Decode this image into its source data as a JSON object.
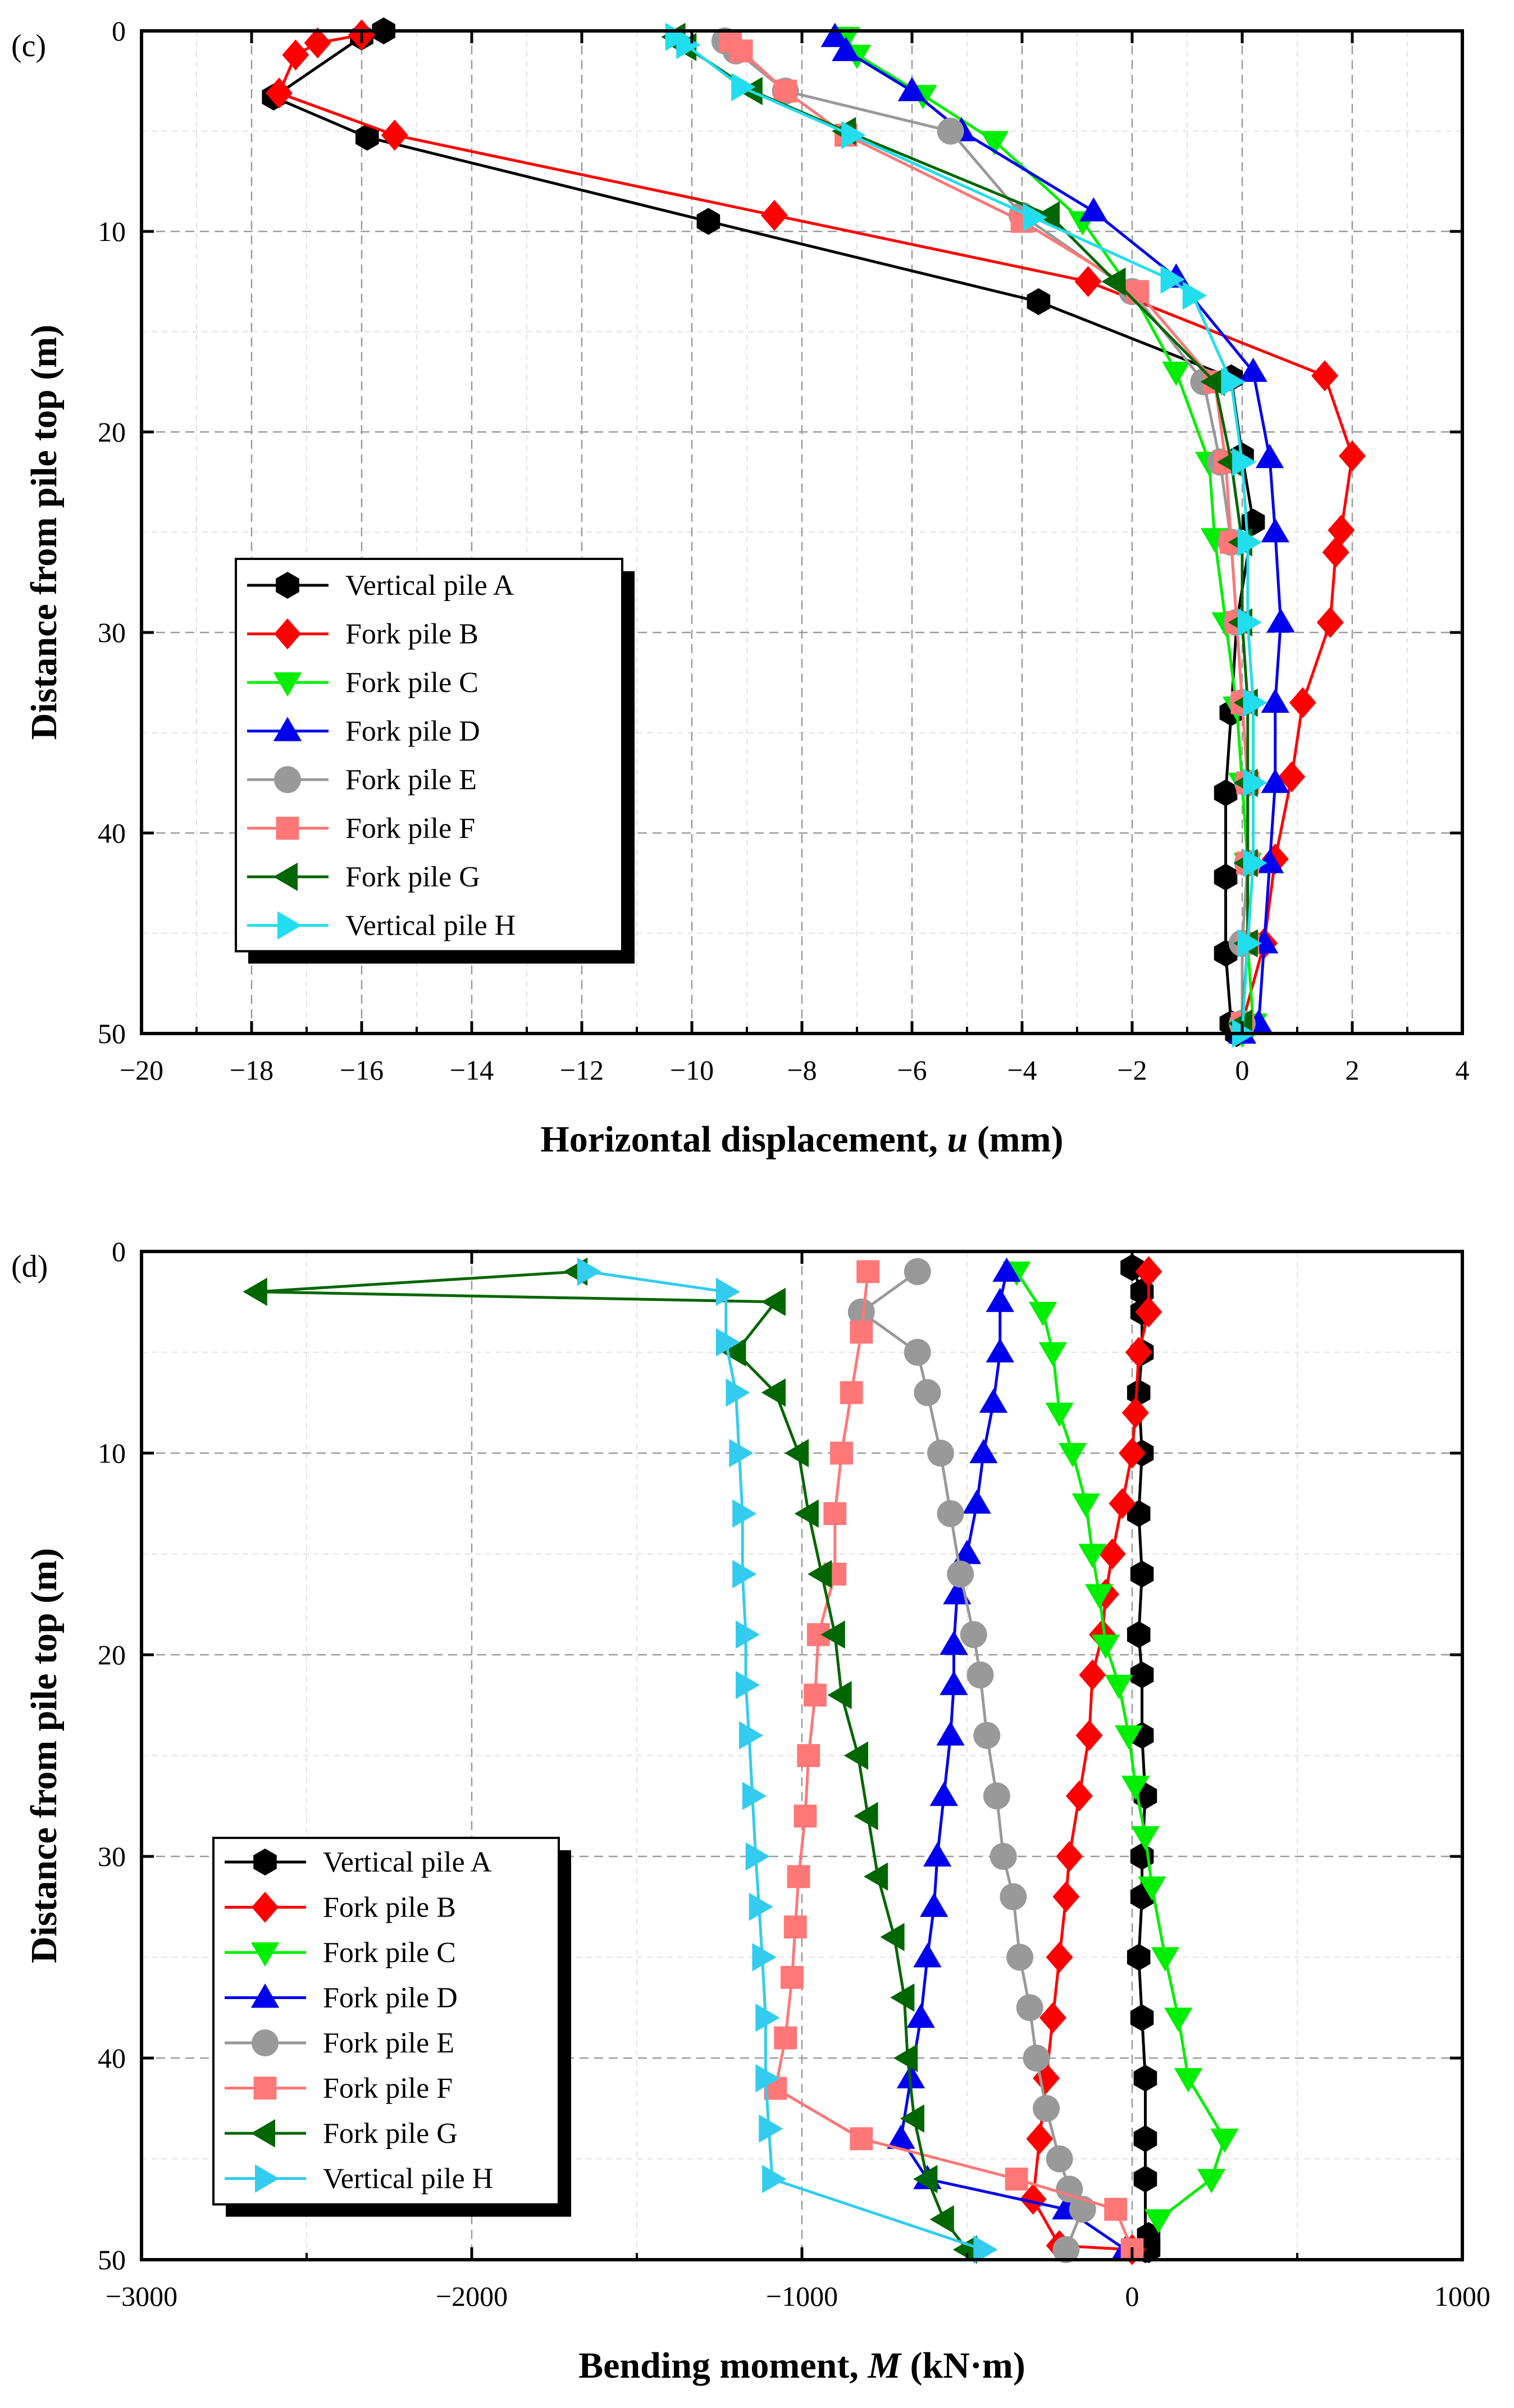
{
  "figure": {
    "panels": [
      "c",
      "d"
    ]
  },
  "chart_data": [
    {
      "type": "line",
      "panel_label": "(c)",
      "xlabel_main": "Horizontal displacement, ",
      "xlabel_var": "u",
      "xlabel_unit": " (mm)",
      "ylabel": "Distance from pile top (m)",
      "xlim": [
        -20,
        4
      ],
      "ylim": [
        50,
        0
      ],
      "y_inverted": true,
      "xticks": [
        -20,
        -18,
        -16,
        -14,
        -12,
        -10,
        -8,
        -6,
        -4,
        -2,
        0,
        2,
        4
      ],
      "xtick_labels": [
        "−20",
        "−18",
        "−16",
        "−14",
        "−12",
        "−10",
        "−8",
        "−6",
        "−4",
        "−2",
        "0",
        "2",
        "4"
      ],
      "yticks": [
        0,
        10,
        20,
        30,
        40,
        50
      ],
      "ytick_labels": [
        "0",
        "10",
        "20",
        "30",
        "40",
        "50"
      ],
      "grid": true,
      "legend_position": "middle-left",
      "series": [
        {
          "name": "Vertical pile A",
          "color": "#000000",
          "marker": "hexagon",
          "x": [
            -15.6,
            -16.0,
            -17.6,
            -15.9,
            -9.7,
            -3.7,
            -0.2,
            0.0,
            0.2,
            -0.1,
            -0.2,
            -0.3,
            -0.3,
            -0.3,
            -0.2,
            -0.1
          ],
          "y": [
            0,
            0.3,
            3.3,
            5.3,
            9.5,
            13.5,
            17.3,
            21.2,
            24.5,
            29.5,
            34,
            38,
            42.2,
            46,
            49.5,
            50
          ]
        },
        {
          "name": "Fork pile B",
          "color": "#ff0000",
          "marker": "diamond",
          "x": [
            -16.0,
            -16.8,
            -17.2,
            -17.5,
            -15.4,
            -8.5,
            -2.8,
            1.5,
            2.0,
            1.8,
            1.7,
            1.6,
            1.1,
            0.9,
            0.6,
            0.4,
            0.0
          ],
          "y": [
            0.2,
            0.6,
            1.2,
            3.1,
            5.2,
            9.2,
            12.5,
            17.2,
            21.2,
            24.9,
            26.0,
            29.5,
            33.5,
            37.2,
            41.3,
            45.5,
            49.5
          ]
        },
        {
          "name": "Fork pile C",
          "color": "#00ee00",
          "marker": "triangle-down",
          "x": [
            -7.2,
            -7.0,
            -5.8,
            -4.5,
            -2.9,
            -2.0,
            -1.2,
            -0.6,
            -0.5,
            -0.3,
            -0.1,
            0.0,
            0.1,
            0.1,
            0.2,
            0.0
          ],
          "y": [
            0.3,
            1.2,
            3.2,
            5.5,
            9.5,
            13.0,
            17.0,
            21.5,
            25.3,
            29.5,
            33.7,
            37.5,
            41.5,
            45.6,
            49.5,
            50
          ]
        },
        {
          "name": "Fork pile D",
          "color": "#0000ee",
          "marker": "triangle-up",
          "x": [
            -7.4,
            -7.2,
            -6.0,
            -5.1,
            -2.7,
            -1.2,
            0.2,
            0.5,
            0.6,
            0.7,
            0.6,
            0.6,
            0.5,
            0.4,
            0.3,
            0.0
          ],
          "y": [
            0.3,
            1.0,
            3.0,
            5.0,
            9.0,
            12.3,
            17.0,
            21.3,
            25.0,
            29.5,
            33.5,
            37.5,
            41.5,
            45.5,
            49.5,
            50
          ]
        },
        {
          "name": "Fork pile E",
          "color": "#999999",
          "marker": "circle",
          "x": [
            -9.4,
            -9.2,
            -8.3,
            -5.3,
            -4.0,
            -2.0,
            -0.7,
            -0.4,
            -0.2,
            -0.1,
            0.0,
            0.1,
            0.1,
            0.0,
            0.0
          ],
          "y": [
            0.5,
            1.0,
            3.0,
            5.0,
            9.2,
            13.0,
            17.5,
            21.5,
            25.5,
            29.5,
            33.5,
            37.5,
            41.5,
            45.5,
            49.5
          ]
        },
        {
          "name": "Fork pile F",
          "color": "#ff7777",
          "marker": "square",
          "x": [
            -9.3,
            -9.1,
            -8.3,
            -7.2,
            -4.0,
            -1.9,
            -0.5,
            -0.3,
            -0.2,
            -0.1,
            0.0,
            0.1,
            0.1,
            0.1,
            0.0
          ],
          "y": [
            0.5,
            1.0,
            3.0,
            5.2,
            9.5,
            13.0,
            17.5,
            21.5,
            25.5,
            29.5,
            33.5,
            37.5,
            41.5,
            45.5,
            49.5
          ]
        },
        {
          "name": "Fork pile G",
          "color": "#006600",
          "marker": "triangle-left",
          "x": [
            -10.3,
            -10.1,
            -8.9,
            -7.2,
            -3.5,
            -2.3,
            -0.5,
            -0.2,
            0.0,
            0.0,
            0.1,
            0.1,
            0.1,
            0.1,
            0.0
          ],
          "y": [
            0.3,
            0.8,
            3.0,
            5.0,
            9.2,
            12.5,
            17.5,
            21.5,
            25.5,
            29.5,
            33.5,
            37.5,
            41.5,
            45.5,
            49.5
          ]
        },
        {
          "name": "Vertical pile H",
          "color": "#22ddee",
          "marker": "triangle-right",
          "x": [
            -10.3,
            -10.1,
            -9.1,
            -7.1,
            -3.8,
            -1.3,
            -0.9,
            -0.2,
            0.0,
            0.1,
            0.1,
            0.2,
            0.2,
            0.2,
            0.1,
            0.0
          ],
          "y": [
            0.3,
            0.7,
            2.8,
            5.2,
            9.3,
            12.4,
            13.2,
            17.5,
            21.5,
            25.5,
            29.5,
            33.5,
            37.5,
            41.5,
            45.5,
            50
          ]
        }
      ]
    },
    {
      "type": "line",
      "panel_label": "(d)",
      "xlabel_main": "Bending moment, ",
      "xlabel_var": "M",
      "xlabel_unit": " (kN·m)",
      "ylabel": "Distance from pile top (m)",
      "xlim": [
        -3000,
        1000
      ],
      "ylim": [
        50,
        0
      ],
      "y_inverted": true,
      "xticks": [
        -3000,
        -2000,
        -1000,
        0,
        1000
      ],
      "xtick_labels": [
        "−3000",
        "−2000",
        "−1000",
        "0",
        "1000"
      ],
      "yticks": [
        0,
        10,
        20,
        30,
        40,
        50
      ],
      "ytick_labels": [
        "0",
        "10",
        "20",
        "30",
        "40",
        "50"
      ],
      "grid": true,
      "legend_position": "bottom-left",
      "series": [
        {
          "name": "Vertical pile A",
          "color": "#000000",
          "marker": "hexagon",
          "x": [
            0,
            30,
            30,
            30,
            20,
            30,
            20,
            30,
            20,
            30,
            30,
            40,
            30,
            30,
            20,
            30,
            40,
            40,
            40,
            40,
            50,
            50,
            50
          ],
          "y": [
            0.8,
            2,
            3,
            5,
            7,
            10,
            13,
            16,
            19,
            21,
            24,
            27,
            30,
            32,
            35,
            38,
            41,
            44,
            46,
            49.5,
            48.8,
            49.3,
            49.5
          ]
        },
        {
          "name": "Fork pile B",
          "color": "#ff0000",
          "marker": "diamond",
          "x": [
            50,
            50,
            20,
            10,
            0,
            -30,
            -60,
            -80,
            -90,
            -120,
            -130,
            -160,
            -190,
            -200,
            -220,
            -240,
            -260,
            -280,
            -300,
            -220,
            0
          ],
          "y": [
            1,
            3,
            5,
            8,
            10,
            12.5,
            15,
            17,
            19,
            21,
            24,
            27,
            30,
            32,
            35,
            38,
            41,
            44,
            47,
            49.3,
            49.5
          ]
        },
        {
          "name": "Fork pile C",
          "color": "#00ee00",
          "marker": "triangle-down",
          "x": [
            -350,
            -270,
            -240,
            -220,
            -180,
            -140,
            -120,
            -100,
            -80,
            -40,
            -10,
            10,
            40,
            60,
            100,
            140,
            170,
            280,
            240,
            80
          ],
          "y": [
            1,
            3,
            5,
            8,
            10,
            12.5,
            15,
            17,
            19.5,
            21.5,
            24,
            26.5,
            29,
            31.5,
            35,
            38,
            41,
            44,
            46,
            48
          ]
        },
        {
          "name": "Fork pile D",
          "color": "#0000ee",
          "marker": "triangle-up",
          "x": [
            -380,
            -400,
            -400,
            -420,
            -450,
            -470,
            -500,
            -530,
            -540,
            -540,
            -550,
            -570,
            -590,
            -600,
            -620,
            -640,
            -670,
            -700,
            -620,
            -200,
            -20
          ],
          "y": [
            1,
            2.5,
            5,
            7.5,
            10,
            12.5,
            15,
            17,
            19.5,
            21.5,
            24,
            27,
            30,
            32.5,
            35,
            38,
            41,
            44,
            46,
            47.5,
            49.5
          ]
        },
        {
          "name": "Fork pile E",
          "color": "#999999",
          "marker": "circle",
          "x": [
            -650,
            -820,
            -650,
            -620,
            -580,
            -550,
            -520,
            -480,
            -460,
            -440,
            -410,
            -390,
            -360,
            -340,
            -310,
            -290,
            -260,
            -220,
            -190,
            -150,
            -200
          ],
          "y": [
            1,
            3,
            5,
            7,
            10,
            13,
            16,
            19,
            21,
            24,
            27,
            30,
            32,
            35,
            37.5,
            40,
            42.5,
            45,
            46.5,
            47.5,
            49.5
          ]
        },
        {
          "name": "Fork pile F",
          "color": "#ff7777",
          "marker": "square",
          "x": [
            -800,
            -820,
            -850,
            -880,
            -900,
            -900,
            -950,
            -960,
            -980,
            -990,
            -1010,
            -1020,
            -1030,
            -1050,
            -1080,
            -820,
            -350,
            -50,
            0
          ],
          "y": [
            1,
            4,
            7,
            10,
            13,
            16,
            19,
            22,
            25,
            28,
            31,
            33.5,
            36,
            39,
            41.5,
            44,
            46,
            47.5,
            49.5
          ]
        },
        {
          "name": "Fork pile G",
          "color": "#006600",
          "marker": "triangle-left",
          "x": [
            -1680,
            -2650,
            -1080,
            -1200,
            -1080,
            -1010,
            -980,
            -940,
            -900,
            -880,
            -830,
            -800,
            -770,
            -720,
            -690,
            -680,
            -660,
            -620,
            -570,
            -500
          ],
          "y": [
            1,
            2,
            2.5,
            5,
            7,
            10,
            13,
            16,
            19,
            22,
            25,
            28,
            31,
            34,
            37,
            40,
            43,
            46,
            48,
            49.5
          ]
        },
        {
          "name": "Vertical pile H",
          "color": "#33ccee",
          "marker": "triangle-right",
          "x": [
            -1650,
            -1230,
            -1230,
            -1200,
            -1190,
            -1180,
            -1180,
            -1170,
            -1170,
            -1160,
            -1150,
            -1140,
            -1130,
            -1120,
            -1110,
            -1110,
            -1100,
            -1090,
            -450
          ],
          "y": [
            1,
            2,
            4.5,
            7,
            10,
            13,
            16,
            19,
            21.5,
            24,
            27,
            30,
            32.5,
            35,
            38,
            41,
            43.5,
            46,
            49.5
          ]
        }
      ]
    }
  ]
}
